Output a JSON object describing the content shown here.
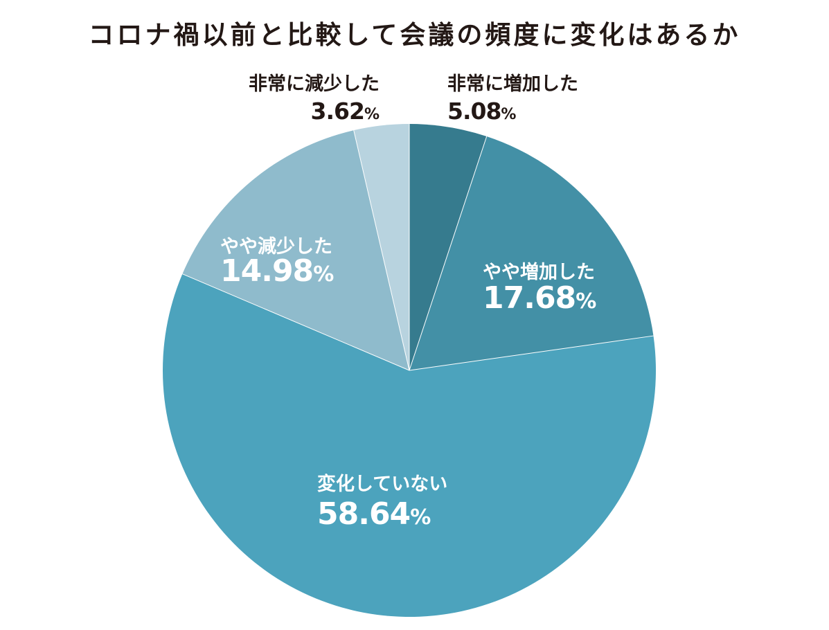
{
  "chart_data": {
    "type": "pie",
    "title": "コロナ禍以前と比較して会議の頻度に変化はあるか",
    "slices": [
      {
        "label": "非常に増加した",
        "value": 5.08,
        "value_label": "5.08",
        "color": "#367b8e"
      },
      {
        "label": "やや増加した",
        "value": 17.68,
        "value_label": "17.68",
        "color": "#4390a6"
      },
      {
        "label": "変化していない",
        "value": 58.64,
        "value_label": "58.64",
        "color": "#4ca3bd"
      },
      {
        "label": "やや減少した",
        "value": 14.98,
        "value_label": "14.98",
        "color": "#8fbbcc"
      },
      {
        "label": "非常に減少した",
        "value": 3.62,
        "value_label": "3.62",
        "color": "#b8d3df"
      }
    ],
    "unit": "%",
    "start_angle": "12 o'clock",
    "direction": "clockwise",
    "legend": "none"
  }
}
